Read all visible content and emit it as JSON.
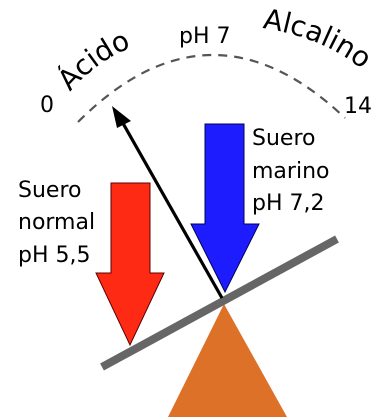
{
  "scale": {
    "left_label": "Ácido",
    "center_label": "pH 7",
    "right_label": "Alcalino",
    "min_label": "0",
    "max_label": "14"
  },
  "normal_serum": {
    "line1": "Suero",
    "line2": "normal",
    "line3": "pH 5,5",
    "color": "#ff2a14"
  },
  "sea_serum": {
    "line1": "Suero",
    "line2": "marino",
    "line3": "pH 7,2",
    "color": "#1c1cff"
  },
  "balance": {
    "beam_color": "#666666",
    "fulcrum_color": "#dd7128",
    "pointer_color": "#000000"
  }
}
